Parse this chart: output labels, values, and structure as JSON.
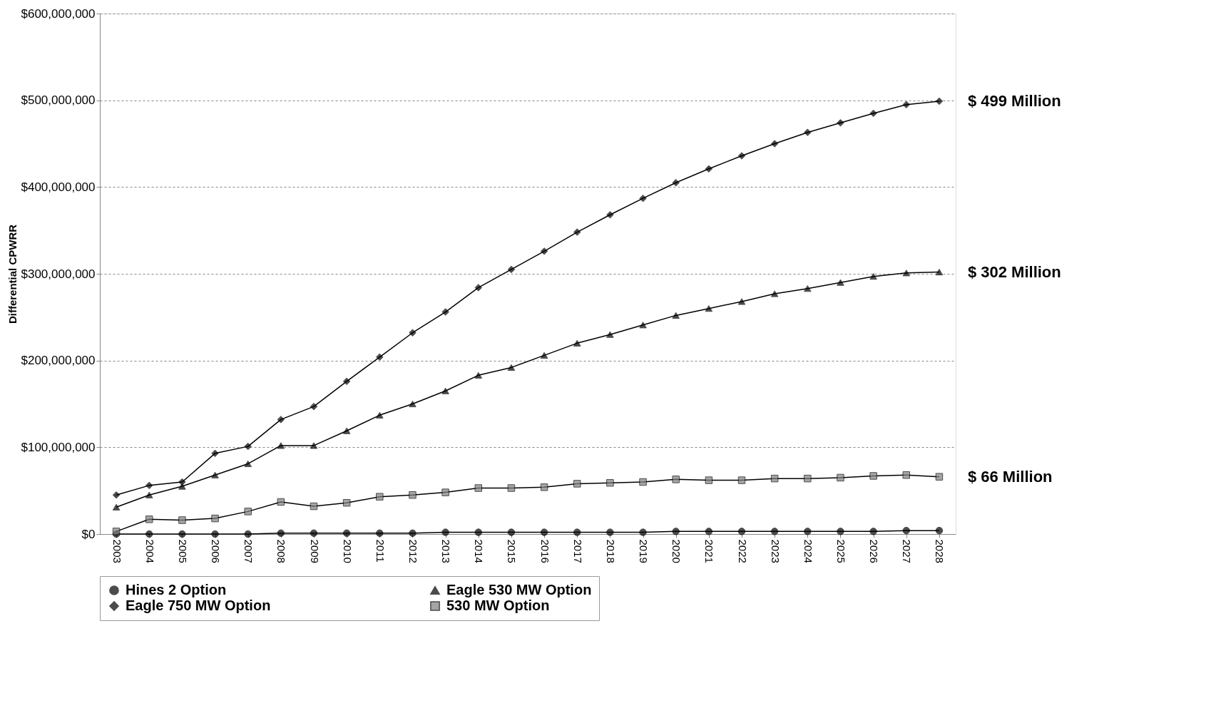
{
  "chart_data": {
    "type": "line",
    "ylabel": "Differential CPWRR",
    "categories": [
      "2003",
      "2004",
      "2005",
      "2006",
      "2007",
      "2008",
      "2009",
      "2010",
      "2011",
      "2012",
      "2013",
      "2014",
      "2015",
      "2016",
      "2017",
      "2018",
      "2019",
      "2020",
      "2021",
      "2022",
      "2023",
      "2024",
      "2025",
      "2026",
      "2027",
      "2028"
    ],
    "series": [
      {
        "name": "Hines 2 Option",
        "color": "#000000",
        "marker": "circle",
        "values": [
          0,
          0,
          0,
          0,
          0,
          1000000,
          1000000,
          1000000,
          1000000,
          1000000,
          2000000,
          2000000,
          2000000,
          2000000,
          2000000,
          2000000,
          2000000,
          3000000,
          3000000,
          3000000,
          3000000,
          3000000,
          3000000,
          3000000,
          4000000,
          4000000
        ]
      },
      {
        "name": "Eagle 530 MW Option",
        "color": "#000000",
        "marker": "triangle",
        "values": [
          31000000,
          45000000,
          55000000,
          68000000,
          81000000,
          102000000,
          102000000,
          119000000,
          137000000,
          150000000,
          165000000,
          183000000,
          192000000,
          206000000,
          220000000,
          230000000,
          241000000,
          252000000,
          260000000,
          268000000,
          277000000,
          283000000,
          290000000,
          297000000,
          301000000,
          302000000
        ]
      },
      {
        "name": "Eagle 750 MW Option",
        "color": "#000000",
        "marker": "diamond",
        "values": [
          45000000,
          56000000,
          60000000,
          93000000,
          101000000,
          132000000,
          147000000,
          176000000,
          204000000,
          232000000,
          256000000,
          284000000,
          305000000,
          326000000,
          348000000,
          368000000,
          387000000,
          405000000,
          421000000,
          436000000,
          450000000,
          463000000,
          474000000,
          485000000,
          495000000,
          499000000
        ]
      },
      {
        "name": "530 MW Option",
        "color": "#808080",
        "marker": "square",
        "values": [
          3000000,
          17000000,
          16000000,
          18000000,
          26000000,
          37000000,
          32000000,
          36000000,
          43000000,
          45000000,
          48000000,
          53000000,
          53000000,
          54000000,
          58000000,
          59000000,
          60000000,
          63000000,
          62000000,
          62000000,
          64000000,
          64000000,
          65000000,
          67000000,
          68000000,
          66000000
        ]
      }
    ],
    "ylim": [
      0,
      600000000
    ],
    "yticks": [
      {
        "value": 0,
        "label": "$0"
      },
      {
        "value": 100000000,
        "label": "$100,000,000"
      },
      {
        "value": 200000000,
        "label": "$200,000,000"
      },
      {
        "value": 300000000,
        "label": "$300,000,000"
      },
      {
        "value": 400000000,
        "label": "$400,000,000"
      },
      {
        "value": 500000000,
        "label": "$500,000,000"
      },
      {
        "value": 600000000,
        "label": "$600,000,000"
      }
    ],
    "annotations": [
      {
        "text": "$ 499 Million",
        "x": "2028",
        "y": 499000000
      },
      {
        "text": "$ 302 Million",
        "x": "2028",
        "y": 302000000
      },
      {
        "text": "$ 66 Million",
        "x": "2028",
        "y": 66000000
      }
    ],
    "grid": "y",
    "legend": "bottom"
  }
}
